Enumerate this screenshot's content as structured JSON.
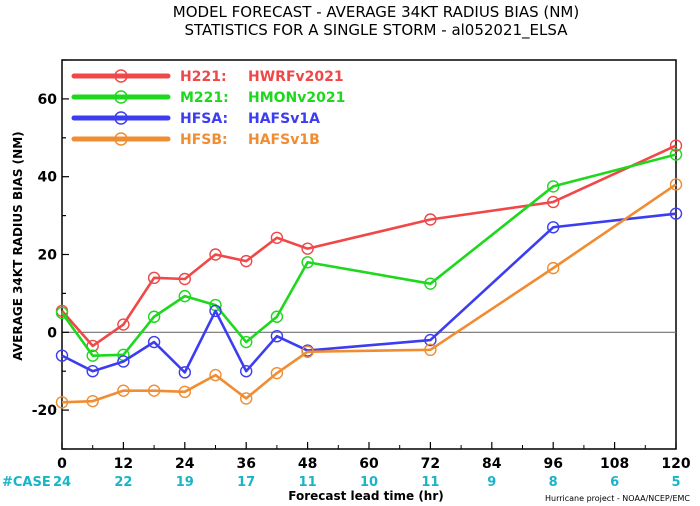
{
  "chart_data": {
    "type": "line",
    "title": "MODEL FORECAST - AVERAGE 34KT RADIUS BIAS (NM)",
    "subtitle": "STATISTICS FOR A SINGLE STORM - al052021_ELSA",
    "xlabel": "Forecast lead time (hr)",
    "ylabel": "AVERAGE 34KT RADIUS BIAS (NM)",
    "xlim": [
      0,
      120
    ],
    "ylim": [
      -30,
      70
    ],
    "xticks": [
      0,
      12,
      24,
      36,
      48,
      60,
      72,
      84,
      96,
      108,
      120
    ],
    "yticks": [
      -20,
      0,
      20,
      40,
      60
    ],
    "zero_line": true,
    "legend_position": "top-left",
    "series": [
      {
        "name": "H221:",
        "label": "HWRFv2021",
        "color": "#f04848",
        "x": [
          0,
          6,
          12,
          18,
          24,
          30,
          36,
          42,
          48,
          72,
          96,
          120
        ],
        "values": [
          5.5,
          -3.5,
          2,
          14,
          13.7,
          20,
          18.3,
          24.3,
          21.5,
          29,
          33.5,
          48
        ]
      },
      {
        "name": "M221:",
        "label": "HMONv2021",
        "color": "#1ed81e",
        "x": [
          0,
          6,
          12,
          18,
          24,
          30,
          36,
          42,
          48,
          72,
          96,
          120
        ],
        "values": [
          5,
          -6,
          -5.8,
          4,
          9.3,
          7,
          -2.5,
          4,
          18,
          12.5,
          37.5,
          45.7
        ]
      },
      {
        "name": "HFSA:",
        "label": "HAFSv1A",
        "color": "#3c3cf0",
        "x": [
          0,
          6,
          12,
          18,
          24,
          30,
          36,
          42,
          48,
          72,
          96,
          120
        ],
        "values": [
          -6,
          -10,
          -7.5,
          -2.5,
          -10.3,
          5.5,
          -10,
          -1,
          -4.7,
          -2,
          27,
          30.5
        ]
      },
      {
        "name": "HFSB:",
        "label": "HAFSv1B",
        "color": "#f08c32",
        "x": [
          0,
          6,
          12,
          18,
          24,
          30,
          36,
          42,
          48,
          72,
          96,
          120
        ],
        "values": [
          -18,
          -17.7,
          -15,
          -15,
          -15.3,
          -11,
          -17,
          -10.5,
          -5,
          -4.5,
          16.5,
          38
        ]
      }
    ],
    "case_label": "#CASE",
    "case_x": [
      0,
      12,
      24,
      36,
      48,
      60,
      72,
      84,
      96,
      108,
      120
    ],
    "cases": [
      "24",
      "22",
      "19",
      "17",
      "11",
      "10",
      "11",
      "9",
      "8",
      "6",
      "5"
    ],
    "credit": "Hurricane project - NOAA/NCEP/EMC",
    "colors": {
      "case_text": "#18b4c8",
      "zero_line": "#707070"
    }
  }
}
